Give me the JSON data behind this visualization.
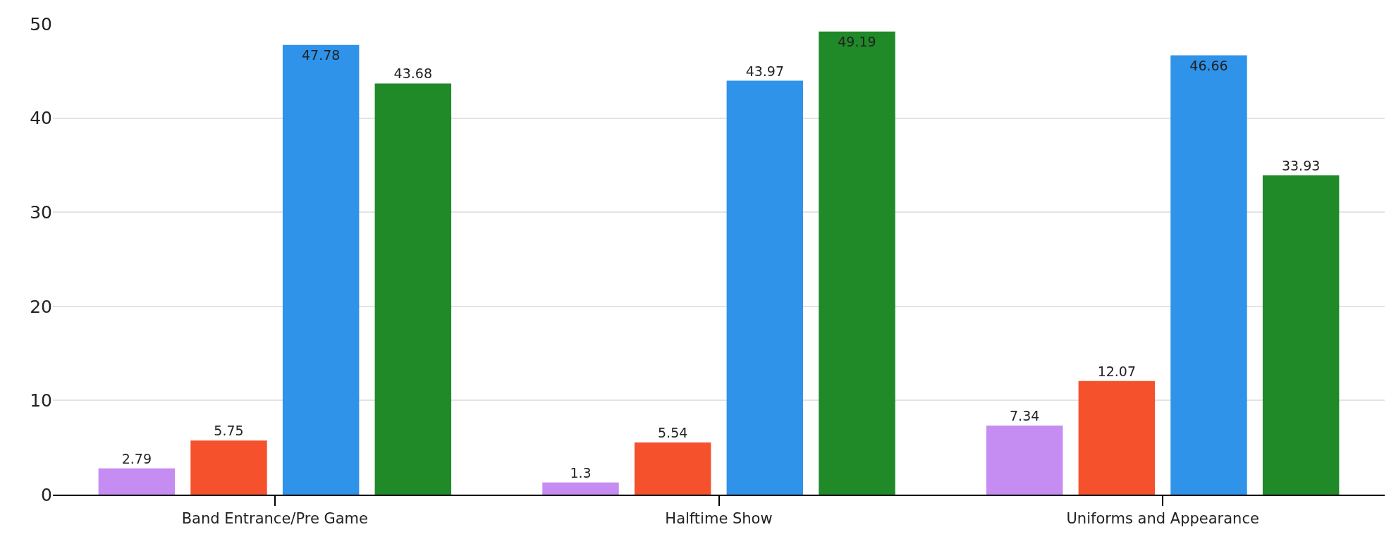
{
  "chart_data": {
    "type": "bar",
    "categories": [
      "Band Entrance/Pre Game",
      "Halftime Show",
      "Uniforms and Appearance"
    ],
    "series": [
      {
        "color": "#c58cf2",
        "values": [
          2.79,
          1.3,
          7.34
        ]
      },
      {
        "color": "#f4512c",
        "values": [
          5.75,
          5.54,
          12.07
        ]
      },
      {
        "color": "#2f93ea",
        "values": [
          47.78,
          43.97,
          46.66
        ]
      },
      {
        "color": "#208928",
        "values": [
          43.68,
          49.19,
          33.93
        ]
      }
    ],
    "ylim": [
      0,
      50
    ],
    "yticks": [
      0,
      10,
      20,
      30,
      40,
      50
    ],
    "grid": "y",
    "data_labels": true
  }
}
